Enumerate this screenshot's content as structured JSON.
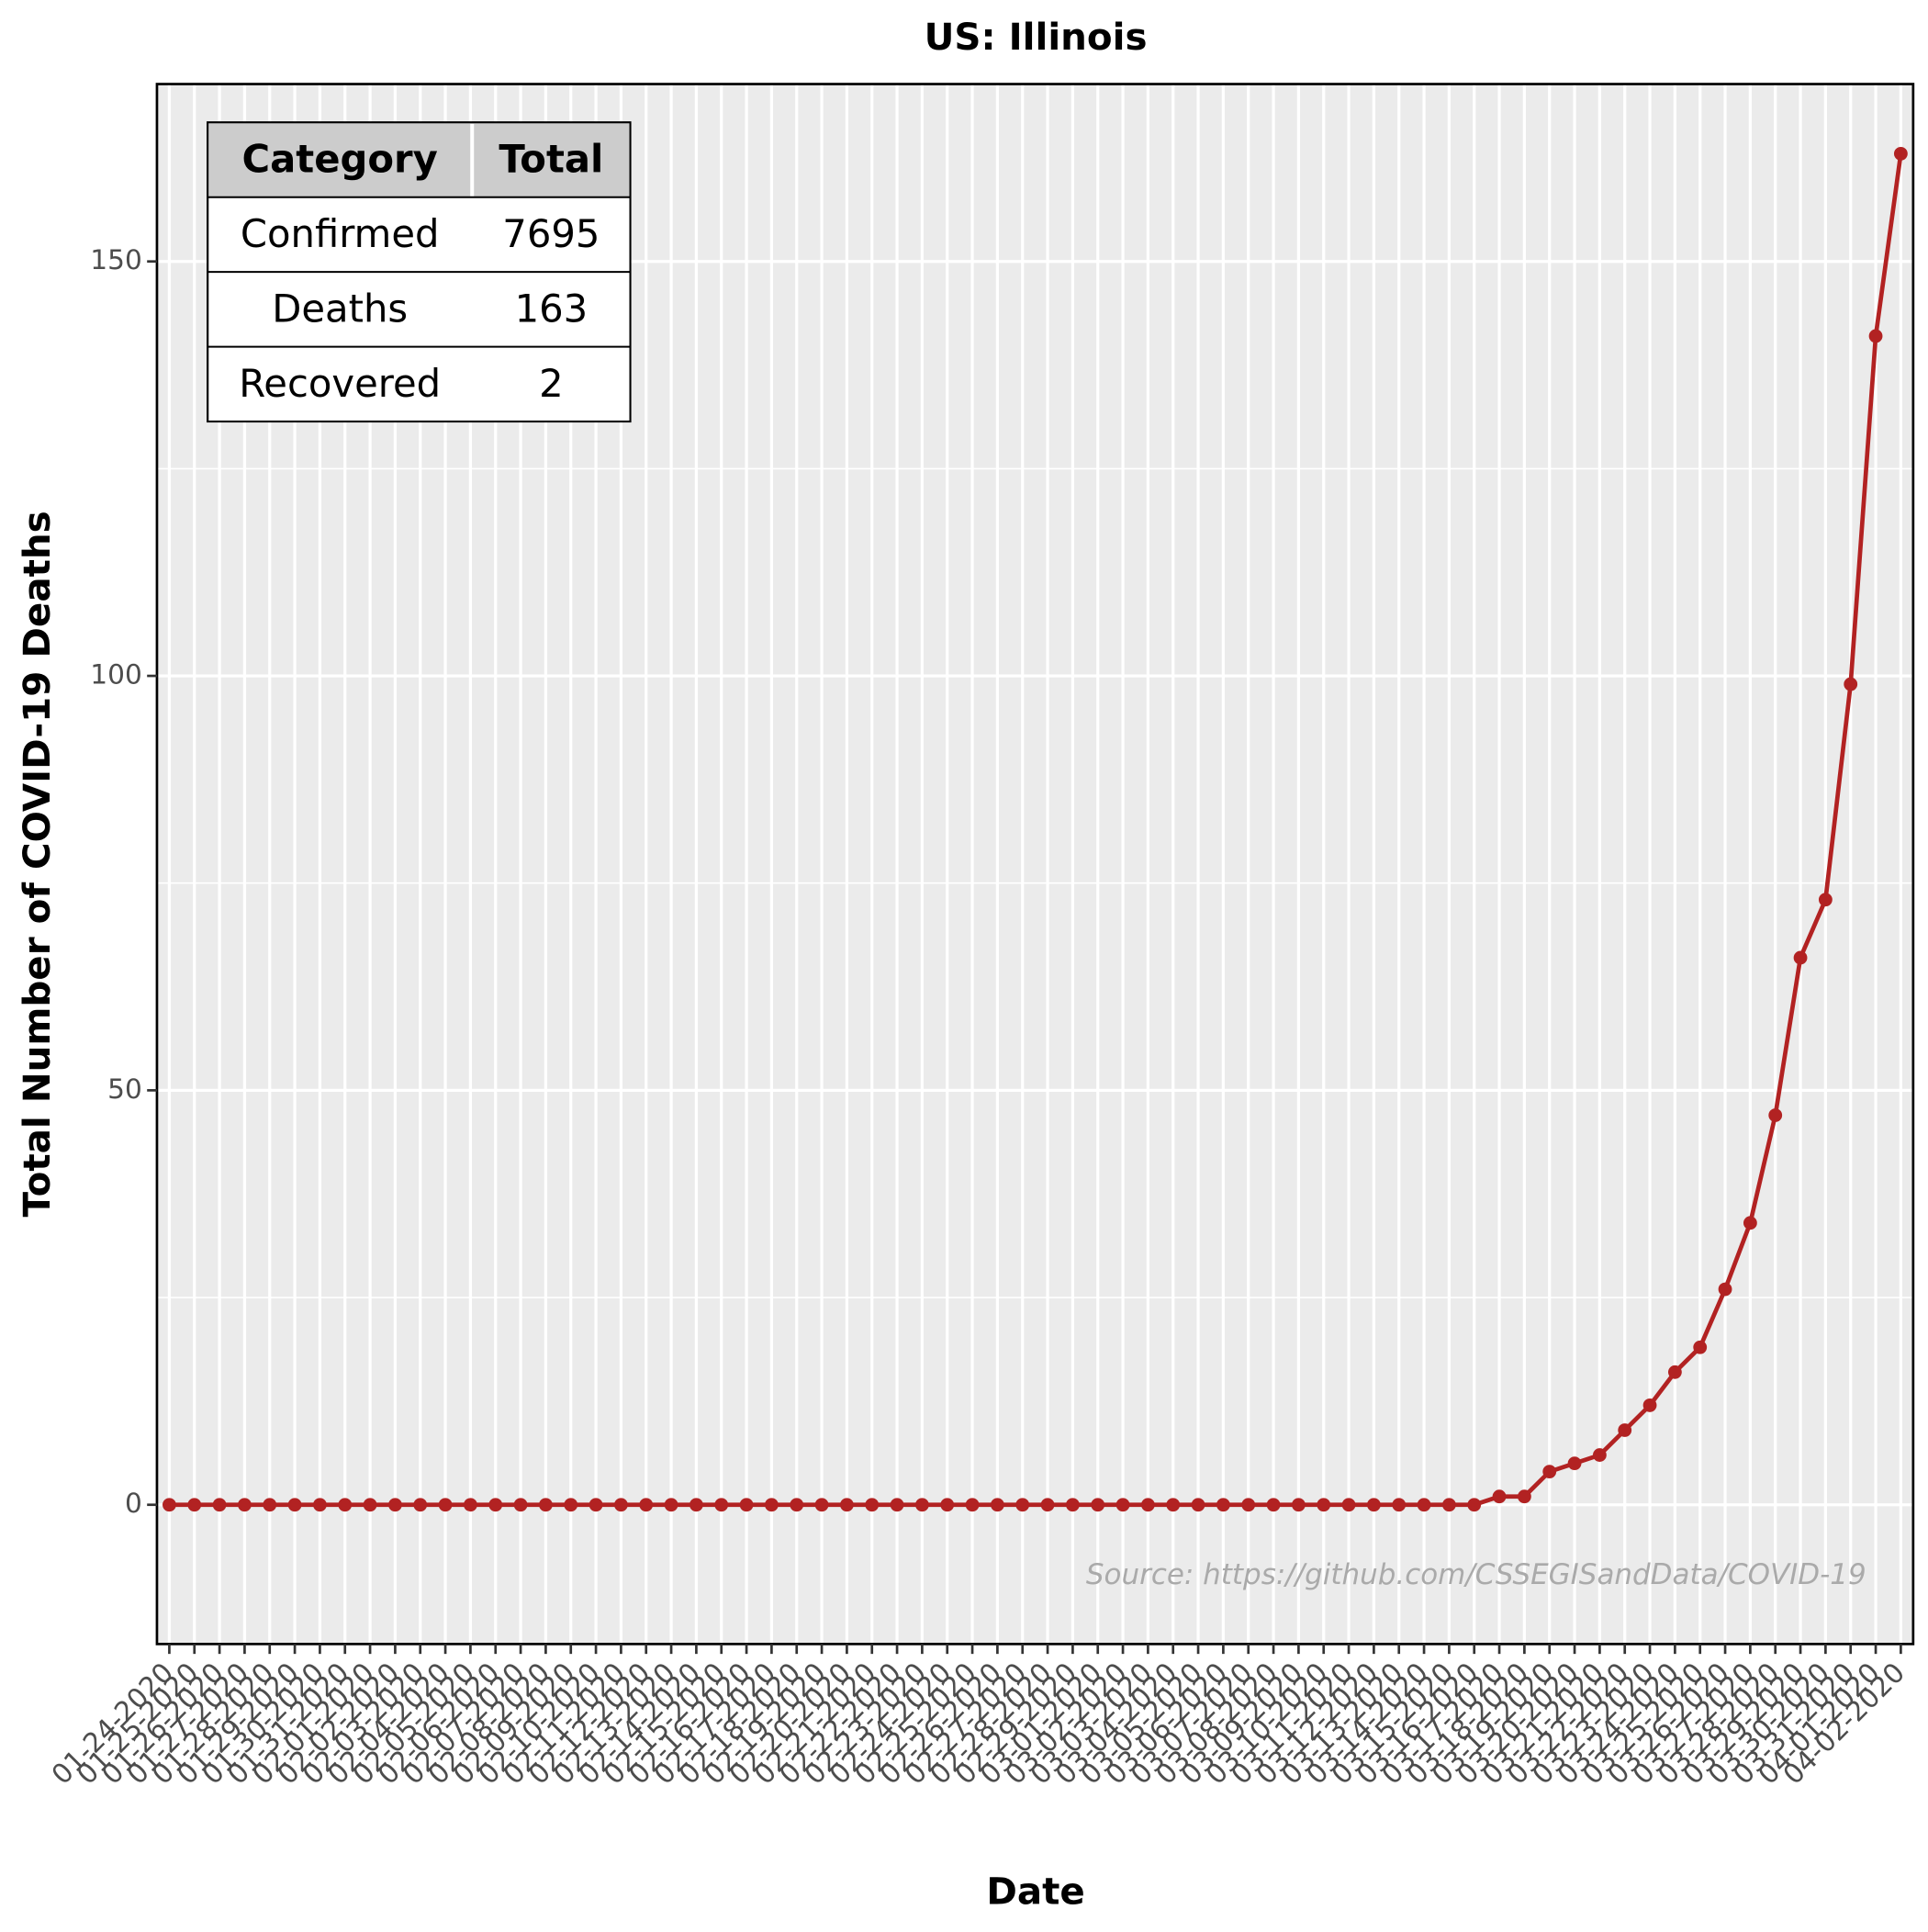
{
  "chart_data": {
    "type": "line",
    "title": "US: Illinois",
    "xlabel": "Date",
    "ylabel": "Total Number of COVID-19 Deaths",
    "annotation": "Source: https://github.com/CSSEGISandData/COVID-19",
    "categories": [
      "01-24-2020",
      "01-25-2020",
      "01-26-2020",
      "01-27-2020",
      "01-28-2020",
      "01-29-2020",
      "01-30-2020",
      "01-31-2020",
      "02-01-2020",
      "02-02-2020",
      "02-03-2020",
      "02-04-2020",
      "02-05-2020",
      "02-06-2020",
      "02-07-2020",
      "02-08-2020",
      "02-09-2020",
      "02-10-2020",
      "02-11-2020",
      "02-12-2020",
      "02-13-2020",
      "02-14-2020",
      "02-15-2020",
      "02-16-2020",
      "02-17-2020",
      "02-18-2020",
      "02-19-2020",
      "02-20-2020",
      "02-21-2020",
      "02-22-2020",
      "02-23-2020",
      "02-24-2020",
      "02-25-2020",
      "02-26-2020",
      "02-27-2020",
      "02-28-2020",
      "02-29-2020",
      "03-01-2020",
      "03-02-2020",
      "03-03-2020",
      "03-04-2020",
      "03-05-2020",
      "03-06-2020",
      "03-07-2020",
      "03-08-2020",
      "03-09-2020",
      "03-10-2020",
      "03-11-2020",
      "03-12-2020",
      "03-13-2020",
      "03-14-2020",
      "03-15-2020",
      "03-16-2020",
      "03-17-2020",
      "03-18-2020",
      "03-19-2020",
      "03-20-2020",
      "03-21-2020",
      "03-22-2020",
      "03-23-2020",
      "03-24-2020",
      "03-25-2020",
      "03-26-2020",
      "03-27-2020",
      "03-28-2020",
      "03-29-2020",
      "03-30-2020",
      "03-31-2020",
      "04-01-2020",
      "04-02-2020"
    ],
    "series": [
      {
        "name": "Deaths",
        "color": "#b22222",
        "values": [
          0,
          0,
          0,
          0,
          0,
          0,
          0,
          0,
          0,
          0,
          0,
          0,
          0,
          0,
          0,
          0,
          0,
          0,
          0,
          0,
          0,
          0,
          0,
          0,
          0,
          0,
          0,
          0,
          0,
          0,
          0,
          0,
          0,
          0,
          0,
          0,
          0,
          0,
          0,
          0,
          0,
          0,
          0,
          0,
          0,
          0,
          0,
          0,
          0,
          0,
          0,
          0,
          0,
          1,
          1,
          4,
          5,
          6,
          9,
          12,
          16,
          19,
          26,
          34,
          47,
          66,
          73,
          99,
          141,
          163
        ]
      }
    ],
    "ylim": [
      -16.8,
      171.4
    ],
    "yticks": [
      0,
      50,
      100,
      150
    ],
    "minor_yticks": [
      25,
      75,
      125
    ],
    "grid": true,
    "table": {
      "columns": [
        "Category",
        "Total"
      ],
      "rows": [
        [
          "Confirmed",
          7695
        ],
        [
          "Deaths",
          163
        ],
        [
          "Recovered",
          2
        ]
      ]
    }
  }
}
